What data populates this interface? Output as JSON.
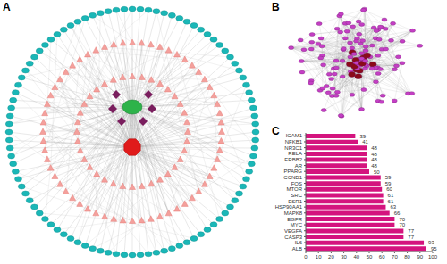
{
  "panel_labels": [
    "A",
    "B",
    "C"
  ],
  "chart_data": {
    "type": "bar",
    "orientation": "horizontal",
    "categories": [
      "ICAM1",
      "NFKB1",
      "NR3C1",
      "RELA",
      "ERBB2",
      "AR",
      "PPARG",
      "CCND1",
      "FOS",
      "MTOR",
      "SRC",
      "ESR1",
      "HSP90AA1",
      "MAPK8",
      "EGFR",
      "MYC",
      "VEGFA",
      "CASP3",
      "IL6",
      "ALB"
    ],
    "values": [
      39,
      41,
      48,
      48,
      48,
      48,
      50,
      59,
      59,
      60,
      61,
      61,
      63,
      66,
      70,
      70,
      77,
      77,
      93,
      95
    ],
    "color": "#d4147e",
    "xlim": [
      0,
      100
    ],
    "xticks": [
      0,
      10,
      20,
      30,
      40,
      50,
      60,
      70,
      80,
      90,
      100
    ],
    "data_labels": true,
    "grid": false
  }
}
